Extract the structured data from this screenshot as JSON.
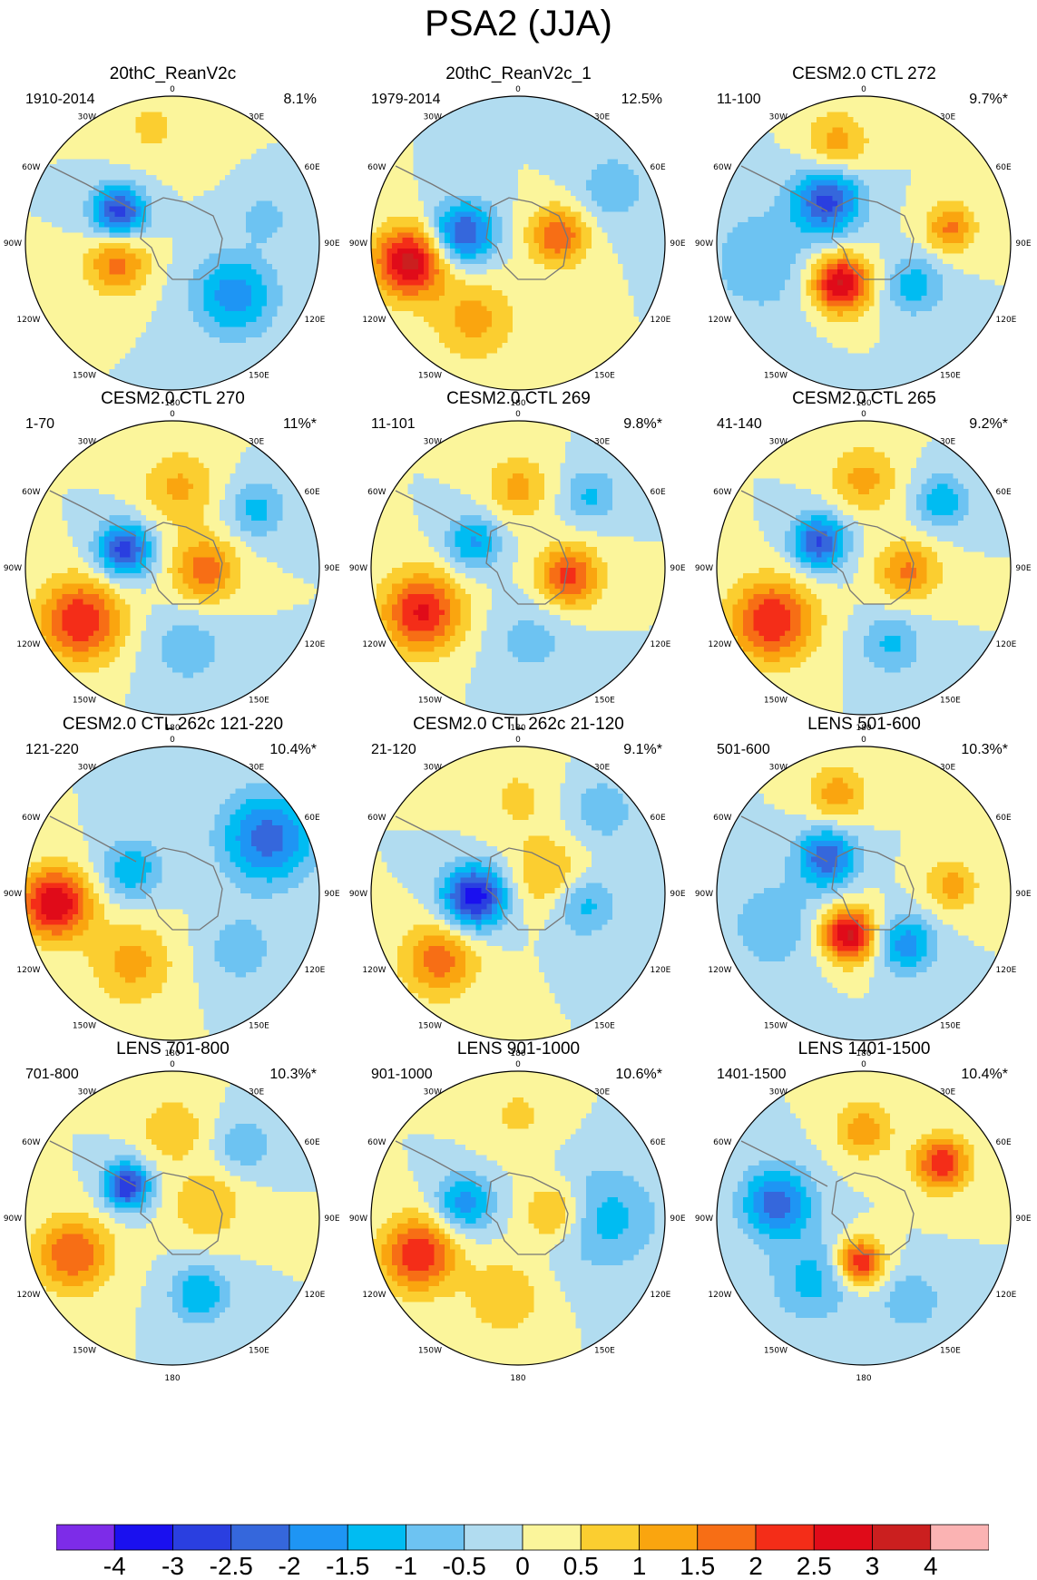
{
  "title": "PSA2 (JJA)",
  "longitude_labels": {
    "top": "0",
    "bottom": "180",
    "left": "90W",
    "right": "90E",
    "upper_left_1": "30W",
    "upper_left_2": "60W",
    "upper_right_1": "30E",
    "upper_right_2": "60E",
    "lower_left_1": "120W",
    "lower_left_2": "150W",
    "lower_right_1": "120E",
    "lower_right_2": "150E"
  },
  "panels": [
    {
      "title": "20thC_ReanV2c",
      "period": "1910-2014",
      "percent": "8.1%",
      "anomalies": [
        [
          -2.8,
          -60,
          0.42,
          0.13
        ],
        [
          -1.8,
          130,
          0.55,
          0.2
        ],
        [
          1.7,
          -110,
          0.4,
          0.15
        ],
        [
          -0.8,
          75,
          0.65,
          0.11
        ],
        [
          0.6,
          -10,
          0.8,
          0.18
        ]
      ]
    },
    {
      "title": "20thC_ReanV2c_1",
      "period": "1979-2014",
      "percent": "12.5%",
      "anomalies": [
        [
          3.2,
          -100,
          0.75,
          0.17
        ],
        [
          -2.6,
          -80,
          0.38,
          0.15
        ],
        [
          2.0,
          80,
          0.28,
          0.14
        ],
        [
          1.2,
          -150,
          0.6,
          0.2
        ],
        [
          -0.9,
          60,
          0.75,
          0.17
        ]
      ]
    },
    {
      "title": "CESM2.0 CTL 272",
      "period": "11-100",
      "percent": "9.7%*",
      "anomalies": [
        [
          -2.6,
          -40,
          0.38,
          0.16
        ],
        [
          3.2,
          -150,
          0.32,
          0.14
        ],
        [
          -1.3,
          130,
          0.45,
          0.14
        ],
        [
          1.3,
          -15,
          0.7,
          0.15
        ],
        [
          1.6,
          80,
          0.6,
          0.12
        ],
        [
          -0.8,
          -100,
          0.7,
          0.3
        ]
      ]
    },
    {
      "title": "CESM2.0 CTL 270",
      "period": "1-70",
      "percent": "11%*",
      "anomalies": [
        [
          -2.8,
          -70,
          0.35,
          0.13
        ],
        [
          2.5,
          -120,
          0.72,
          0.2
        ],
        [
          1.8,
          95,
          0.22,
          0.16
        ],
        [
          -1.2,
          55,
          0.7,
          0.14
        ],
        [
          1.1,
          5,
          0.55,
          0.18
        ],
        [
          -0.8,
          170,
          0.55,
          0.2
        ]
      ]
    },
    {
      "title": "CESM2.0 CTL 269",
      "period": "11-101",
      "percent": "9.8%*",
      "anomalies": [
        [
          2.6,
          -115,
          0.72,
          0.19
        ],
        [
          -1.6,
          -60,
          0.35,
          0.13
        ],
        [
          2.2,
          100,
          0.35,
          0.15
        ],
        [
          1.2,
          0,
          0.55,
          0.15
        ],
        [
          -1.1,
          45,
          0.7,
          0.13
        ],
        [
          -0.7,
          170,
          0.5,
          0.2
        ]
      ]
    },
    {
      "title": "CESM2.0 CTL 265",
      "period": "41-140",
      "percent": "9.2%*",
      "anomalies": [
        [
          -2.6,
          -60,
          0.35,
          0.13
        ],
        [
          2.5,
          -120,
          0.72,
          0.2
        ],
        [
          1.6,
          95,
          0.3,
          0.15
        ],
        [
          1.2,
          0,
          0.6,
          0.16
        ],
        [
          -1.4,
          50,
          0.7,
          0.13
        ],
        [
          -1.1,
          160,
          0.55,
          0.15
        ]
      ]
    },
    {
      "title": "CESM2.0 CTL 262c 121-220",
      "period": "121-220",
      "percent": "10.4%*",
      "anomalies": [
        [
          3.0,
          -95,
          0.8,
          0.17
        ],
        [
          -2.3,
          60,
          0.75,
          0.22
        ],
        [
          -1.4,
          -60,
          0.32,
          0.15
        ],
        [
          1.2,
          -150,
          0.55,
          0.2
        ],
        [
          -0.8,
          130,
          0.6,
          0.18
        ]
      ]
    },
    {
      "title": "CESM2.0 CTL 262c 21-120",
      "period": "21-120",
      "percent": "9.1%*",
      "anomalies": [
        [
          -3.4,
          -95,
          0.3,
          0.15
        ],
        [
          1.8,
          -130,
          0.7,
          0.18
        ],
        [
          -1.3,
          100,
          0.45,
          0.15
        ],
        [
          1.1,
          60,
          0.25,
          0.18
        ],
        [
          -0.8,
          45,
          0.8,
          0.18
        ],
        [
          0.6,
          0,
          0.65,
          0.2
        ]
      ]
    },
    {
      "title": "LENS 501-600",
      "period": "501-600",
      "percent": "10.3%*",
      "anomalies": [
        [
          3.2,
          -160,
          0.3,
          0.13
        ],
        [
          -2.4,
          -45,
          0.35,
          0.14
        ],
        [
          -1.8,
          140,
          0.45,
          0.14
        ],
        [
          1.3,
          -15,
          0.7,
          0.14
        ],
        [
          1.2,
          85,
          0.6,
          0.13
        ],
        [
          -0.8,
          -110,
          0.65,
          0.25
        ]
      ]
    },
    {
      "title": "LENS 701-800",
      "period": "701-800",
      "percent": "10.3%*",
      "anomalies": [
        [
          -3.0,
          -55,
          0.38,
          0.11
        ],
        [
          2.0,
          -110,
          0.72,
          0.18
        ],
        [
          -1.5,
          160,
          0.55,
          0.14
        ],
        [
          1.0,
          70,
          0.25,
          0.17
        ],
        [
          -1.0,
          45,
          0.7,
          0.13
        ],
        [
          1.0,
          0,
          0.6,
          0.15
        ]
      ]
    },
    {
      "title": "LENS 901-1000",
      "period": "901-1000",
      "percent": "10.6%*",
      "anomalies": [
        [
          2.5,
          -110,
          0.72,
          0.18
        ],
        [
          -1.8,
          -75,
          0.38,
          0.14
        ],
        [
          1.4,
          80,
          0.25,
          0.14
        ],
        [
          -1.2,
          90,
          0.6,
          0.25
        ],
        [
          1.0,
          -170,
          0.55,
          0.18
        ],
        [
          0.6,
          0,
          0.7,
          0.18
        ]
      ]
    },
    {
      "title": "LENS 1401-1500",
      "period": "1401-1500",
      "percent": "10.4%*",
      "anomalies": [
        [
          -2.3,
          -80,
          0.6,
          0.17
        ],
        [
          2.6,
          -175,
          0.3,
          0.11
        ],
        [
          2.4,
          55,
          0.65,
          0.13
        ],
        [
          1.3,
          0,
          0.6,
          0.14
        ],
        [
          -1.2,
          -140,
          0.55,
          0.2
        ],
        [
          -1.0,
          150,
          0.65,
          0.14
        ]
      ]
    }
  ],
  "colorbar": {
    "colors": [
      "#7d2ce8",
      "#1a10ef",
      "#2a3fe0",
      "#3567dc",
      "#1e95f4",
      "#00bcf2",
      "#6dc3f2",
      "#b1dcf0",
      "#fbf59b",
      "#fbce30",
      "#faa50f",
      "#f76e15",
      "#f42d18",
      "#e00b19",
      "#cb1f1f",
      "#fbb3b3"
    ],
    "labels": [
      "-4",
      "-3",
      "-2.5",
      "-2",
      "-1.5",
      "-1",
      "-0.5",
      "0",
      "0.5",
      "1",
      "1.5",
      "2",
      "2.5",
      "3",
      "4"
    ],
    "levels": [
      -4,
      -3,
      -2.5,
      -2,
      -1.5,
      -1,
      -0.5,
      0,
      0.5,
      1,
      1.5,
      2,
      2.5,
      3,
      4
    ]
  }
}
